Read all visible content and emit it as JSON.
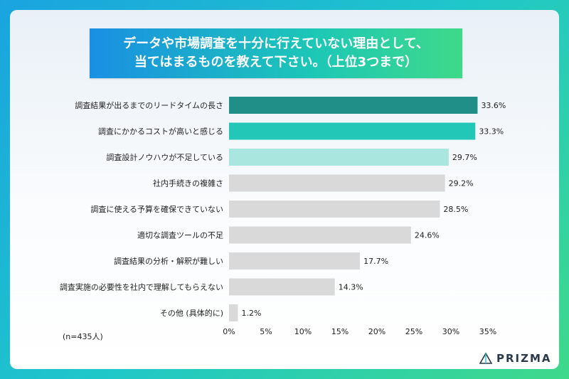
{
  "title": {
    "line1": "データや市場調査を十分に行えていない理由として、",
    "line2": "当てはまるものを教えて下さい。（上位3つまで）"
  },
  "note": "(n=435人)",
  "logo": {
    "text": "PRIZMA",
    "icon": "prizma-logo-icon"
  },
  "colors": {
    "top1": "#1f8f87",
    "top2": "#22c7b8",
    "top3": "#a8e6df",
    "other": "#d9d9d9"
  },
  "chart_data": {
    "type": "bar",
    "orientation": "horizontal",
    "categories": [
      "調査結果が出るまでのリードタイムの長さ",
      "調査にかかるコストが高いと感じる",
      "調査設計ノウハウが不足している",
      "社内手続きの複雑さ",
      "調査に使える予算を確保できていない",
      "適切な調査ツールの不足",
      "調査結果の分析・解釈が難しい",
      "調査実施の必要性を社内で理解してもらえない",
      "その他 (具体的に)"
    ],
    "values": [
      33.6,
      33.3,
      29.7,
      29.2,
      28.5,
      24.6,
      17.7,
      14.3,
      1.2
    ],
    "value_labels": [
      "33.6%",
      "33.3%",
      "29.7%",
      "29.2%",
      "28.5%",
      "24.6%",
      "17.7%",
      "14.3%",
      "1.2%"
    ],
    "xlim": [
      0,
      35
    ],
    "x_ticks": [
      0,
      5,
      10,
      15,
      20,
      25,
      30,
      35
    ],
    "x_tick_labels": [
      "0%",
      "5%",
      "10%",
      "15%",
      "20%",
      "25%",
      "30%",
      "35%"
    ],
    "grid": false,
    "legend": "none"
  }
}
